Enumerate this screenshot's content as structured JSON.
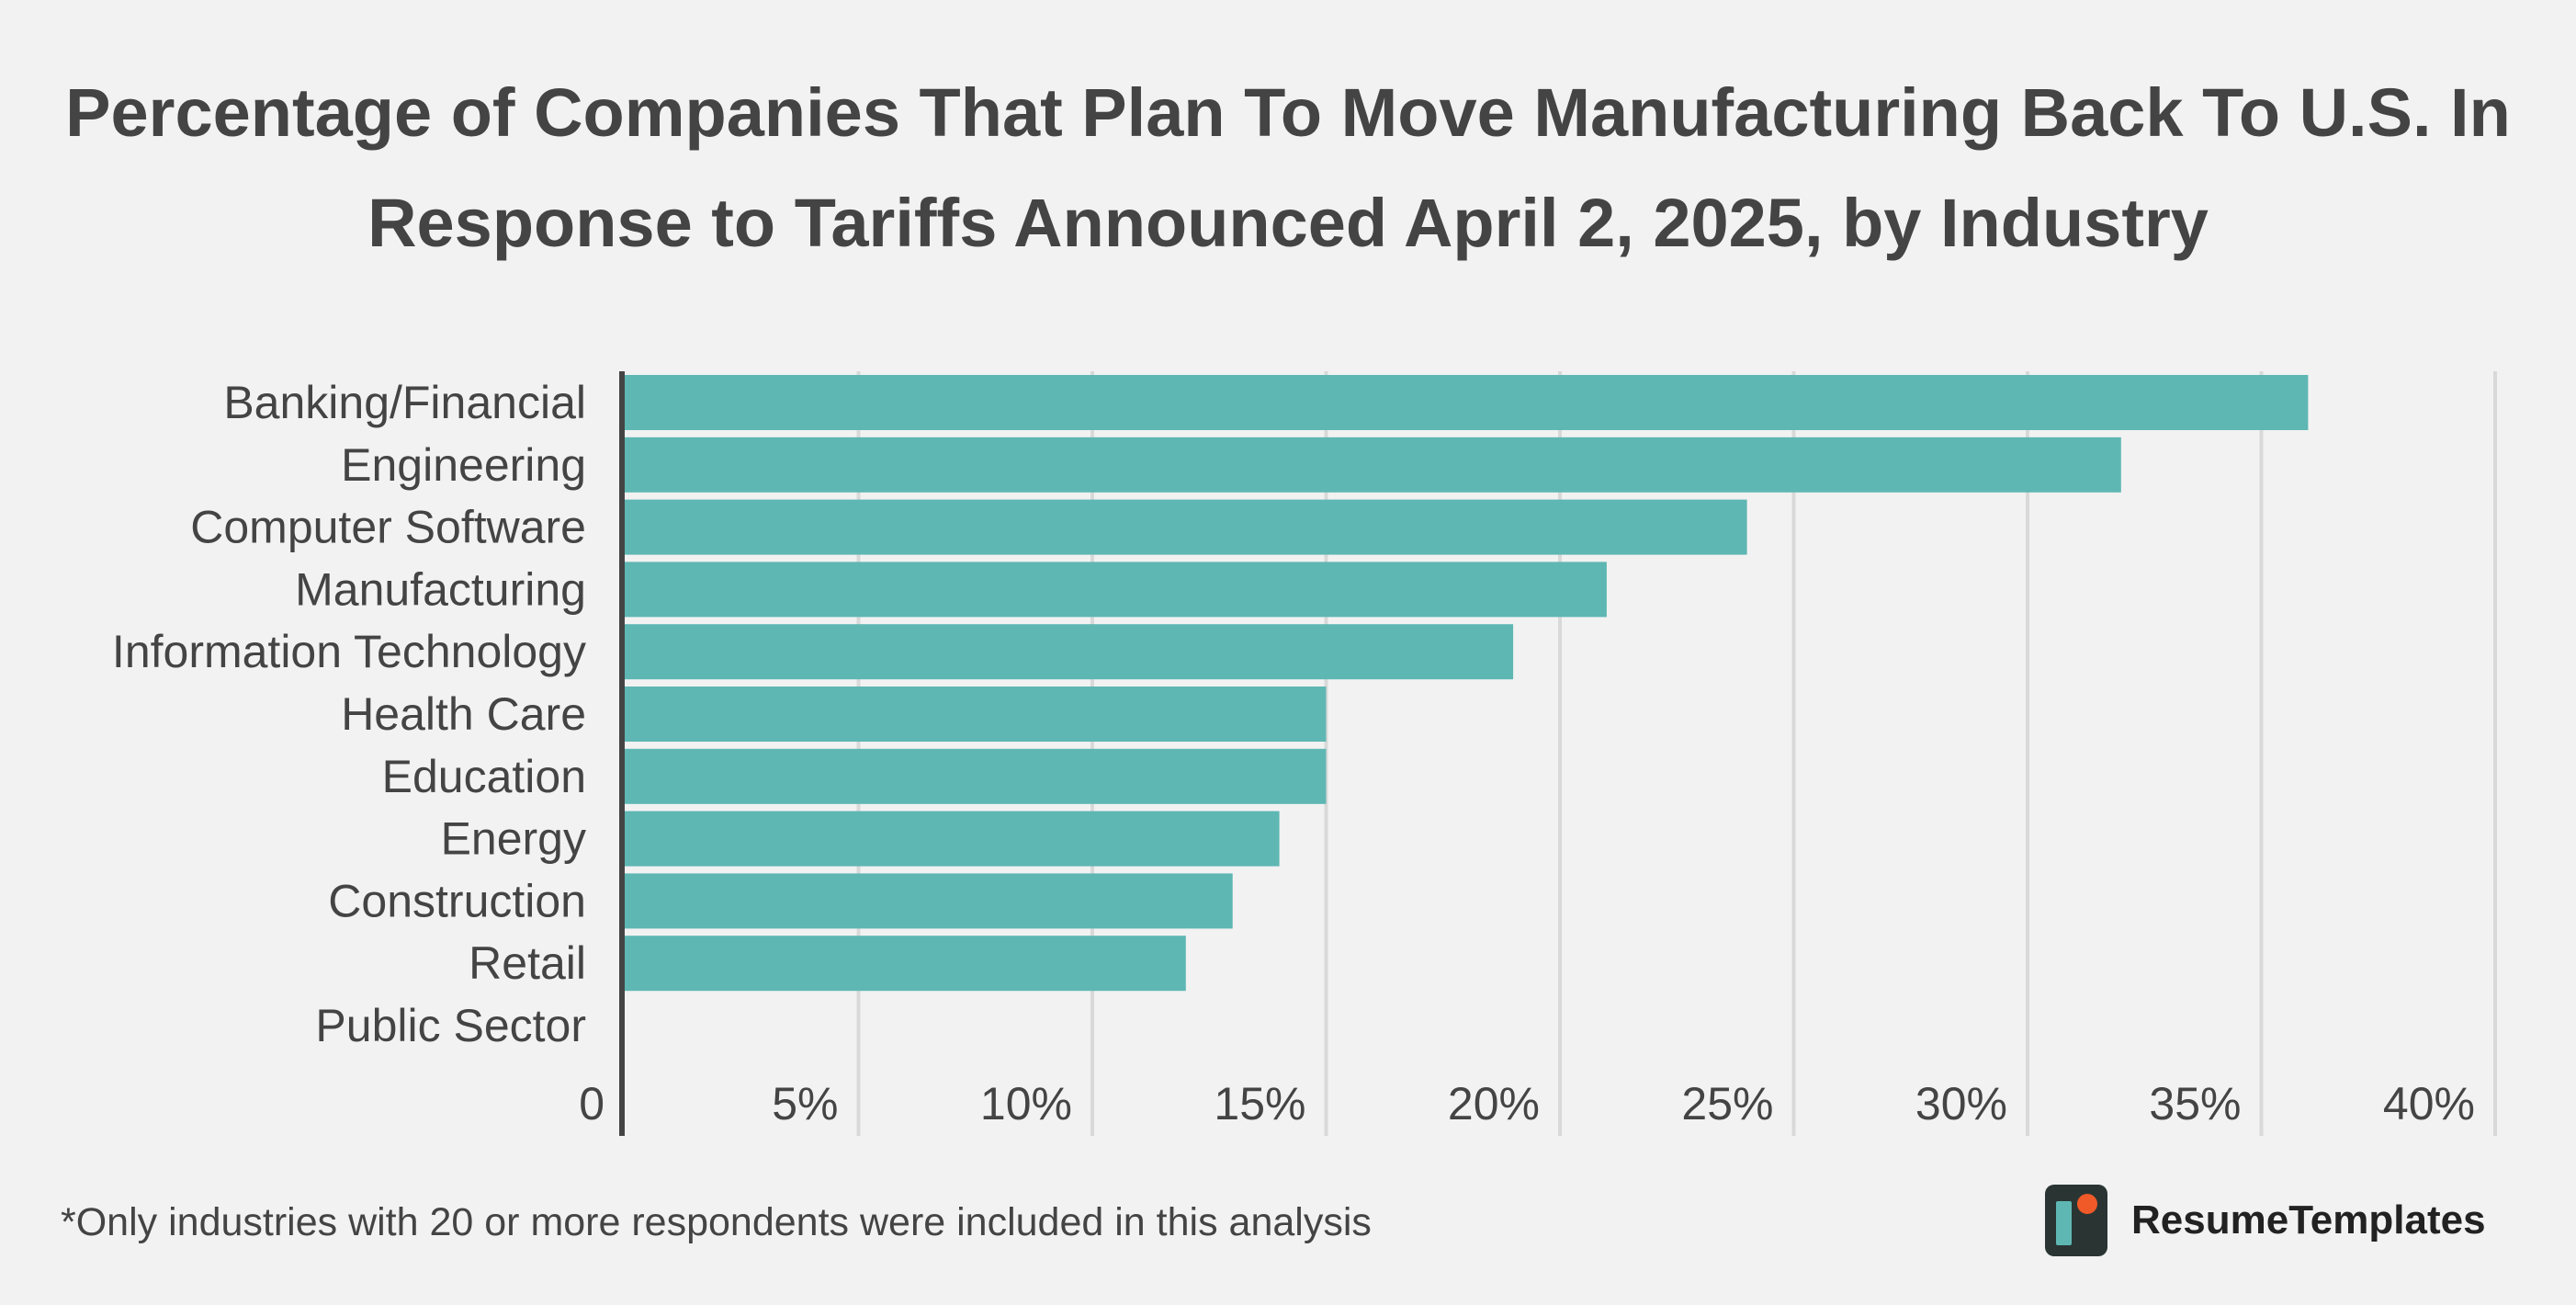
{
  "title_lines": [
    "Percentage of Companies That Plan To Move Manufacturing Back To U.S. In",
    "Response to Tariffs Announced April 2, 2025, by Industry"
  ],
  "footnote": "*Only industries with 20 or more respondents were included in this analysis",
  "brand": {
    "name": "ResumeTemplates",
    "logo_icon": "resumetemplates-logo-icon"
  },
  "colors": {
    "bar": "#5eb7b3",
    "text": "#444444",
    "gridline": "#d9d9d9",
    "axis": "#444444",
    "background": "#f2f2f2"
  },
  "chart_data": {
    "type": "bar",
    "orientation": "horizontal",
    "title": "Percentage of Companies That Plan To Move Manufacturing Back To U.S. In Response to Tariffs Announced April 2, 2025, by Industry",
    "categories": [
      "Banking/Financial",
      "Engineering",
      "Computer Software",
      "Manufacturing",
      "Information Technology",
      "Health Care",
      "Education",
      "Energy",
      "Construction",
      "Retail",
      "Public Sector"
    ],
    "values": [
      36,
      32,
      24,
      21,
      19,
      15,
      15,
      14,
      13,
      12,
      0
    ],
    "xlim": [
      0,
      40
    ],
    "xticks": [
      0,
      5,
      10,
      15,
      20,
      25,
      30,
      35,
      40
    ],
    "xtick_labels": [
      "0",
      "5%",
      "10%",
      "15%",
      "20%",
      "25%",
      "30%",
      "35%",
      "40%"
    ],
    "grid": "vertical",
    "legend": "none"
  }
}
